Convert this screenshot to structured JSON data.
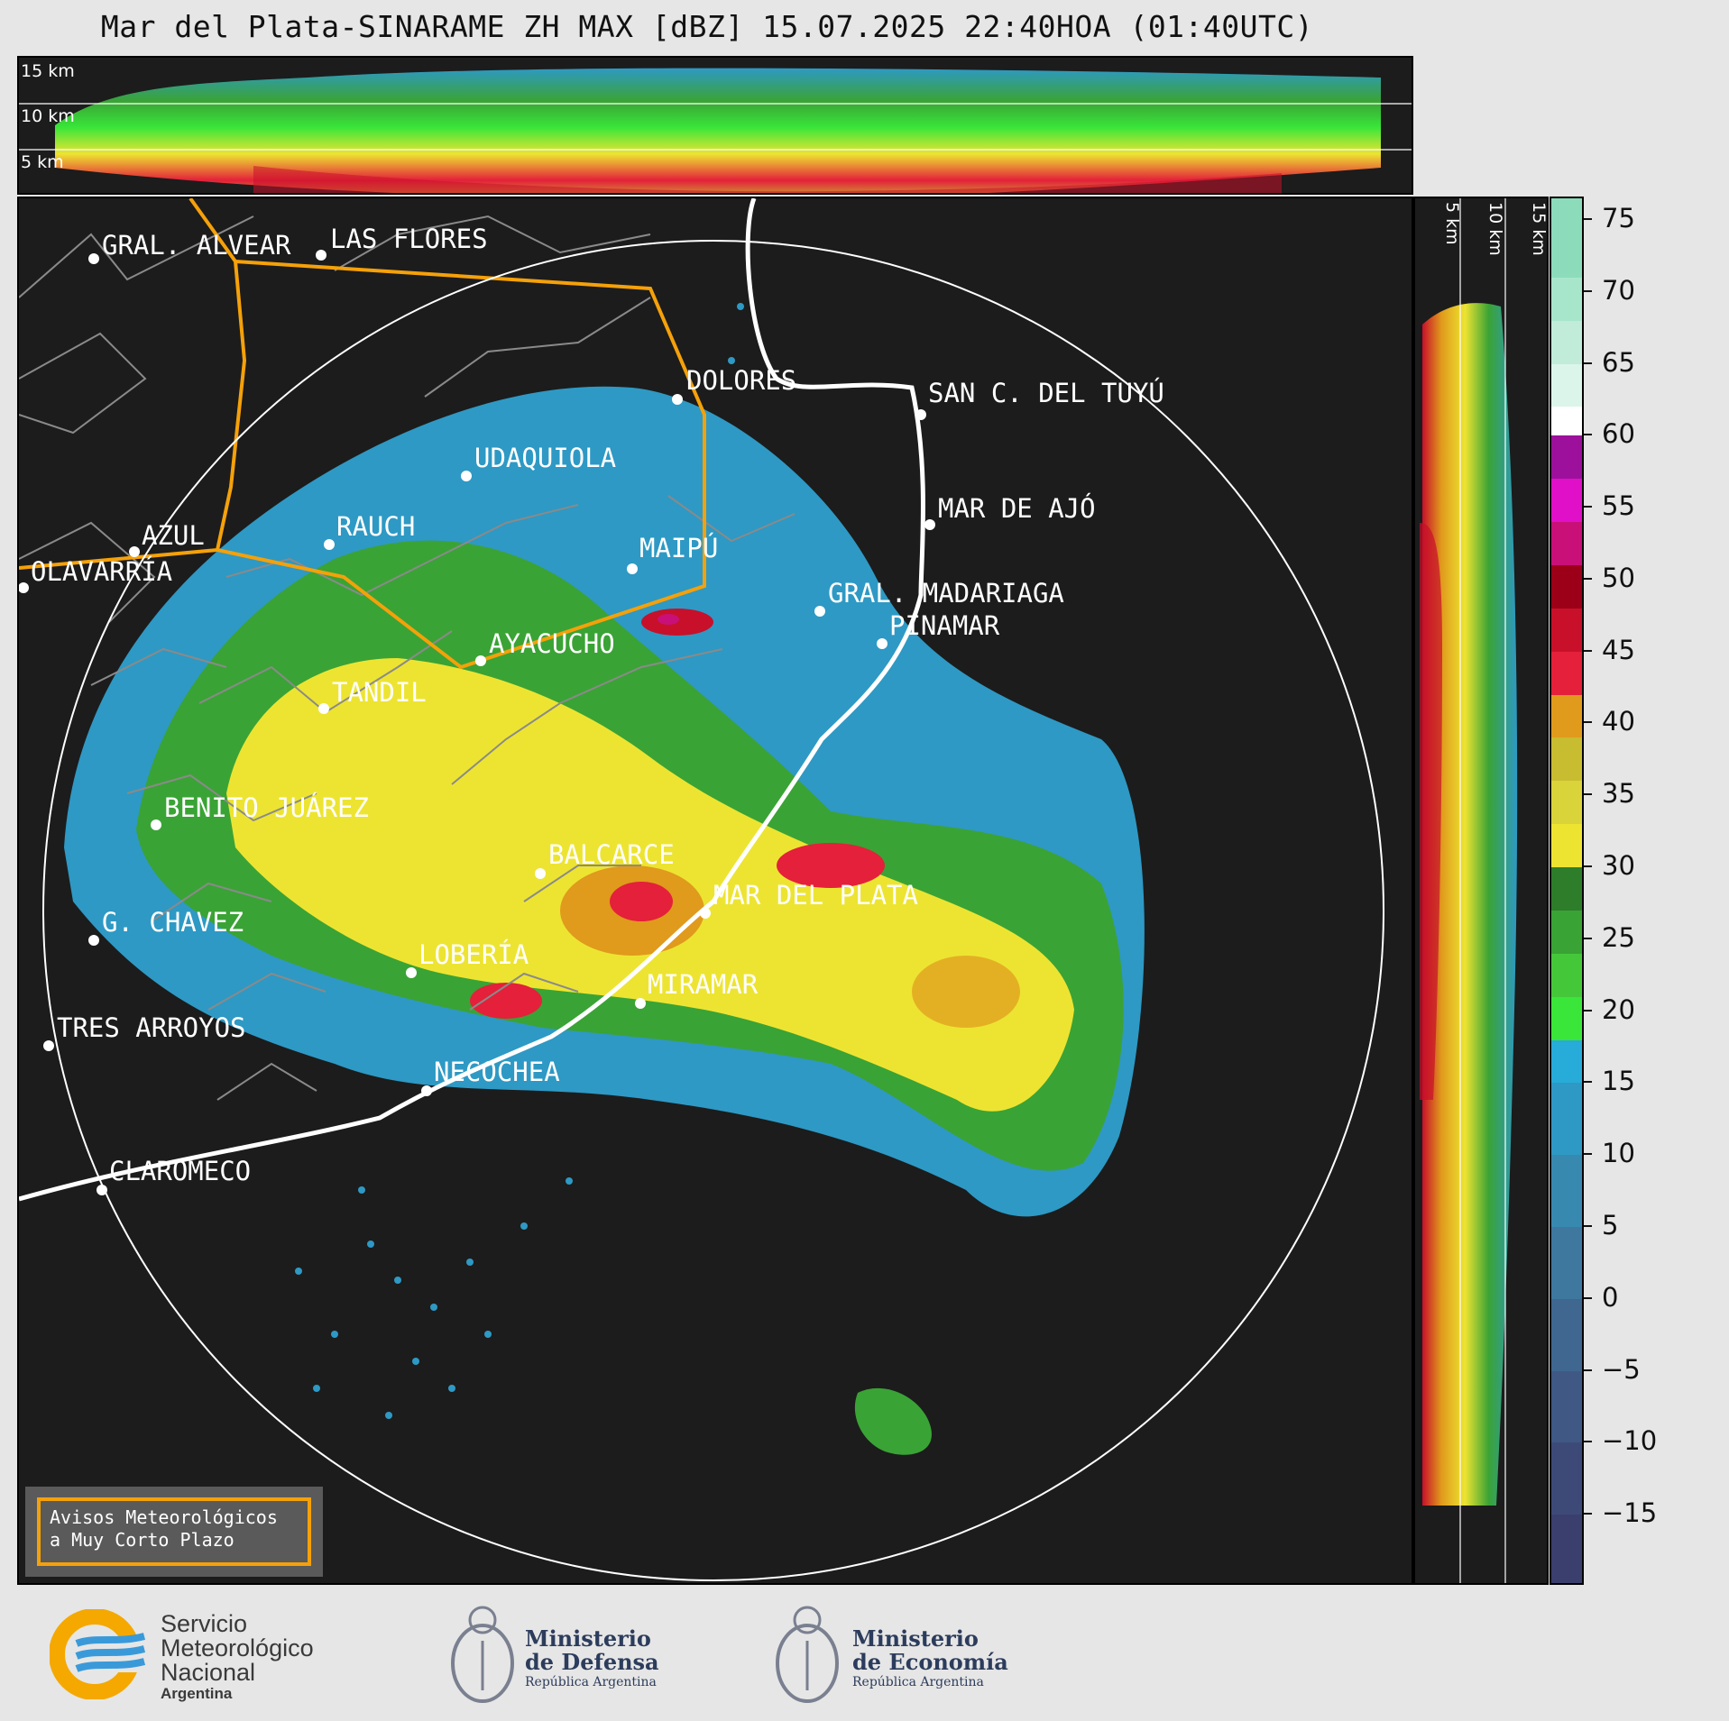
{
  "title": "Mar del Plata-SINARAME ZH MAX [dBZ] 15.07.2025 22:40HOA (01:40UTC)",
  "top_panel": {
    "height_labels": [
      "15 km",
      "10 km",
      "5 km"
    ]
  },
  "side_panel": {
    "height_labels": [
      "5 km",
      "10 km",
      "15 km"
    ]
  },
  "colorbar": {
    "unit": "dBZ",
    "tick_labels": [
      "75",
      "70",
      "65",
      "60",
      "55",
      "50",
      "45",
      "40",
      "35",
      "30",
      "25",
      "20",
      "15",
      "10",
      "5",
      "0",
      "−5",
      "−10",
      "−15"
    ],
    "tick_values": [
      75,
      70,
      65,
      60,
      55,
      50,
      45,
      40,
      35,
      30,
      25,
      20,
      15,
      10,
      5,
      0,
      -5,
      -10,
      -15
    ],
    "range": [
      -20,
      76.5
    ],
    "bands": [
      {
        "from": -20,
        "to": -15,
        "color": "#3a3f6e"
      },
      {
        "from": -15,
        "to": -10,
        "color": "#3d4a78"
      },
      {
        "from": -10,
        "to": -5,
        "color": "#3f5884"
      },
      {
        "from": -5,
        "to": 0,
        "color": "#3f6790"
      },
      {
        "from": 0,
        "to": 5,
        "color": "#3e789e"
      },
      {
        "from": 5,
        "to": 10,
        "color": "#3889b0"
      },
      {
        "from": 10,
        "to": 15,
        "color": "#2e99c4"
      },
      {
        "from": 15,
        "to": 18,
        "color": "#27abd8"
      },
      {
        "from": 18,
        "to": 21,
        "color": "#39e639"
      },
      {
        "from": 21,
        "to": 24,
        "color": "#44c83a"
      },
      {
        "from": 24,
        "to": 27,
        "color": "#3aa335"
      },
      {
        "from": 27,
        "to": 30,
        "color": "#2d7d2a"
      },
      {
        "from": 30,
        "to": 33,
        "color": "#ede432"
      },
      {
        "from": 33,
        "to": 36,
        "color": "#d9d43a"
      },
      {
        "from": 36,
        "to": 39,
        "color": "#c8bc30"
      },
      {
        "from": 39,
        "to": 42,
        "color": "#e09a1c"
      },
      {
        "from": 42,
        "to": 45,
        "color": "#e4203a"
      },
      {
        "from": 45,
        "to": 48,
        "color": "#c8102a"
      },
      {
        "from": 48,
        "to": 51,
        "color": "#9c0018"
      },
      {
        "from": 51,
        "to": 54,
        "color": "#c81078"
      },
      {
        "from": 54,
        "to": 57,
        "color": "#e010c8"
      },
      {
        "from": 57,
        "to": 60,
        "color": "#9c109c"
      },
      {
        "from": 60,
        "to": 62,
        "color": "#ffffff"
      },
      {
        "from": 62,
        "to": 65,
        "color": "#dcf5ea"
      },
      {
        "from": 65,
        "to": 68,
        "color": "#c0ecd9"
      },
      {
        "from": 68,
        "to": 71,
        "color": "#a8e6cc"
      },
      {
        "from": 71,
        "to": 76.5,
        "color": "#8cdcbc"
      }
    ]
  },
  "map": {
    "cities": [
      {
        "name": "GRAL. ALVEAR"
      },
      {
        "name": "LAS FLORES"
      },
      {
        "name": "DOLORES"
      },
      {
        "name": "SAN C. DEL TUYÚ"
      },
      {
        "name": "UDAQUIOLA"
      },
      {
        "name": "MAR DE AJÓ"
      },
      {
        "name": "AZUL"
      },
      {
        "name": "RAUCH"
      },
      {
        "name": "MAIPÚ"
      },
      {
        "name": "OLAVARRÍA"
      },
      {
        "name": "GRAL. MADARIAGA"
      },
      {
        "name": "PINAMAR"
      },
      {
        "name": "AYACUCHO"
      },
      {
        "name": "TANDIL"
      },
      {
        "name": "BENITO JUÁREZ"
      },
      {
        "name": "BALCARCE"
      },
      {
        "name": "MAR DEL PLATA"
      },
      {
        "name": "G. CHAVEZ"
      },
      {
        "name": "LOBERÍA"
      },
      {
        "name": "MIRAMAR"
      },
      {
        "name": "TRES ARROYOS"
      },
      {
        "name": "NECOCHEA"
      },
      {
        "name": "CLAROMECO"
      }
    ],
    "warning_box": {
      "line1": "Avisos Meteorológicos",
      "line2": "a Muy Corto Plazo"
    },
    "colors": {
      "background": "#1c1c1c",
      "border_lines": "#8a8a8a",
      "warning_area": "#f5a10a",
      "coastline": "#ffffff",
      "range_ring": "#ffffff"
    }
  },
  "footer": {
    "smn": {
      "line1": "Servicio",
      "line2": "Meteorológico",
      "line3": "Nacional",
      "line4": "Argentina"
    },
    "defensa": {
      "line1": "Ministerio",
      "line2": "de Defensa",
      "line3": "República Argentina"
    },
    "economia": {
      "line1": "Ministerio",
      "line2": "de Economía",
      "line3": "República Argentina"
    }
  }
}
